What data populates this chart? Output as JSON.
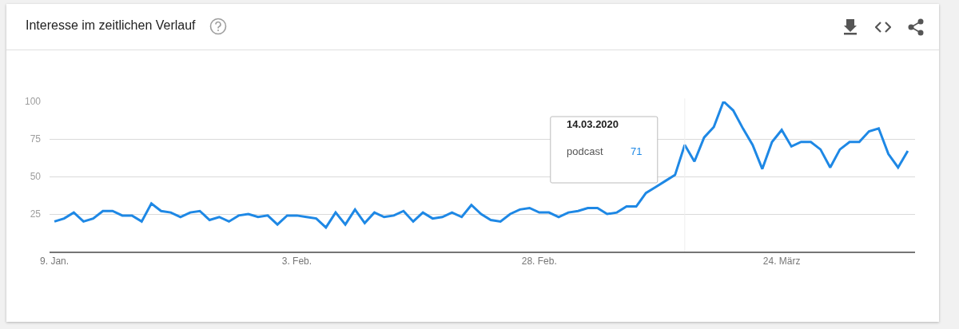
{
  "chart_data": {
    "type": "line",
    "title": "Interesse im zeitlichen Verlauf",
    "x": [
      "2020-01-09",
      "2020-01-10",
      "2020-01-11",
      "2020-01-12",
      "2020-01-13",
      "2020-01-14",
      "2020-01-15",
      "2020-01-16",
      "2020-01-17",
      "2020-01-18",
      "2020-01-19",
      "2020-01-20",
      "2020-01-21",
      "2020-01-22",
      "2020-01-23",
      "2020-01-24",
      "2020-01-25",
      "2020-01-26",
      "2020-01-27",
      "2020-01-28",
      "2020-01-29",
      "2020-01-30",
      "2020-01-31",
      "2020-02-01",
      "2020-02-02",
      "2020-02-03",
      "2020-02-04",
      "2020-02-05",
      "2020-02-06",
      "2020-02-07",
      "2020-02-08",
      "2020-02-09",
      "2020-02-10",
      "2020-02-11",
      "2020-02-12",
      "2020-02-13",
      "2020-02-14",
      "2020-02-15",
      "2020-02-16",
      "2020-02-17",
      "2020-02-18",
      "2020-02-19",
      "2020-02-20",
      "2020-02-21",
      "2020-02-22",
      "2020-02-23",
      "2020-02-24",
      "2020-02-25",
      "2020-02-26",
      "2020-02-27",
      "2020-02-28",
      "2020-02-29",
      "2020-03-01",
      "2020-03-02",
      "2020-03-03",
      "2020-03-04",
      "2020-03-05",
      "2020-03-06",
      "2020-03-07",
      "2020-03-08",
      "2020-03-09",
      "2020-03-10",
      "2020-03-11",
      "2020-03-12",
      "2020-03-13",
      "2020-03-14",
      "2020-03-15",
      "2020-03-16",
      "2020-03-17",
      "2020-03-18",
      "2020-03-19",
      "2020-03-20",
      "2020-03-21",
      "2020-03-22",
      "2020-03-23",
      "2020-03-24",
      "2020-03-25",
      "2020-03-26",
      "2020-03-27",
      "2020-03-28",
      "2020-03-29",
      "2020-03-30",
      "2020-03-31",
      "2020-04-01",
      "2020-04-02",
      "2020-04-03",
      "2020-04-04",
      "2020-04-05",
      "2020-04-06"
    ],
    "series": [
      {
        "name": "podcast",
        "color": "#1e88e5",
        "values": [
          20,
          22,
          26,
          20,
          22,
          27,
          27,
          24,
          24,
          20,
          32,
          27,
          26,
          23,
          26,
          27,
          21,
          23,
          20,
          24,
          25,
          23,
          24,
          18,
          24,
          24,
          23,
          22,
          16,
          26,
          18,
          28,
          19,
          26,
          23,
          24,
          27,
          20,
          26,
          22,
          23,
          26,
          23,
          31,
          25,
          21,
          20,
          25,
          28,
          29,
          26,
          26,
          23,
          26,
          27,
          29,
          29,
          25,
          26,
          30,
          30,
          39,
          43,
          47,
          51,
          71,
          60,
          76,
          83,
          100,
          94,
          82,
          71,
          55,
          73,
          81,
          70,
          73,
          73,
          68,
          56,
          68,
          73,
          73,
          80,
          82,
          65,
          56,
          67
        ]
      }
    ],
    "xlim": [
      "2020-01-08T12:00",
      "2020-04-06T18:00"
    ],
    "xticks": [
      {
        "value": "2020-01-09",
        "label": "9. Jan."
      },
      {
        "value": "2020-02-03",
        "label": "3. Feb."
      },
      {
        "value": "2020-02-28",
        "label": "28. Feb."
      },
      {
        "value": "2020-03-24",
        "label": "24. März"
      }
    ],
    "ylim": [
      0,
      100
    ],
    "yticks": [
      25,
      50,
      75,
      100
    ],
    "grid": "y",
    "line_style": "solid",
    "ref_lines": [
      {
        "axis": "x",
        "value": "2020-03-14",
        "color": "#eeeeee"
      }
    ],
    "annotations": [
      "14.03.2020",
      "71"
    ]
  }
}
